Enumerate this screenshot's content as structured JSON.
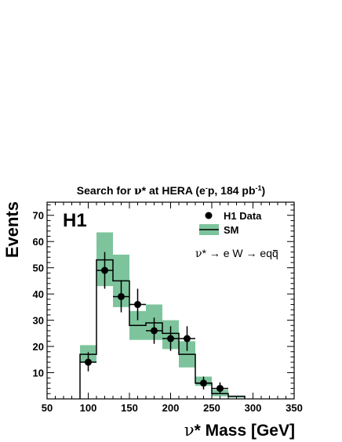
{
  "chart_data": {
    "type": "bar",
    "title_parts": {
      "pre": "Search for ",
      "nu": "ν",
      "star": "*",
      "mid": " at HERA (e",
      "sup_minus": "-",
      "p": "p, 184 pb",
      "sup_lumi": "-1",
      "end": ")"
    },
    "experiment_label": "H1",
    "xlabel_parts": {
      "nu": "ν",
      "rest": "* Mass [GeV]"
    },
    "ylabel": "Events",
    "xlim": [
      50,
      350
    ],
    "ylim": [
      0,
      75
    ],
    "xticks": [
      50,
      100,
      150,
      200,
      250,
      300,
      350
    ],
    "yticks": [
      10,
      20,
      30,
      40,
      50,
      60,
      70
    ],
    "legend": {
      "placement": "top-right",
      "data_label": "H1 Data",
      "sm_label": "SM"
    },
    "process": {
      "nu": "ν",
      "star": "*",
      "arrow1": " → ",
      "mid": "e W",
      "arrow2": " → ",
      "end": "eq",
      "qbar": "q"
    },
    "bin_width": 20,
    "sm": {
      "name": "SM",
      "color": "#7dc49d",
      "line_color": "#000000",
      "bin_low_edges": [
        90,
        110,
        130,
        150,
        170,
        190,
        210,
        230,
        250,
        270
      ],
      "values": [
        17,
        53,
        45,
        28,
        29,
        25,
        17,
        6,
        2,
        1
      ],
      "err_low": [
        14,
        43,
        35,
        22.5,
        22.5,
        19,
        12,
        5,
        1,
        0.5
      ],
      "err_high": [
        20.5,
        63.5,
        55,
        33.5,
        36,
        30,
        22,
        8.5,
        3.5,
        1
      ]
    },
    "data": {
      "name": "H1 Data",
      "x": [
        100,
        120,
        140,
        160,
        180,
        200,
        220,
        240,
        260
      ],
      "y": [
        14,
        49,
        39,
        36,
        26,
        23,
        23,
        6,
        4
      ],
      "err_low": [
        3.5,
        7,
        6,
        6,
        5,
        4.7,
        4.7,
        2.4,
        2
      ],
      "err_high": [
        3.8,
        7,
        6.3,
        6,
        5,
        4.7,
        4.7,
        2.5,
        2.3
      ]
    }
  }
}
